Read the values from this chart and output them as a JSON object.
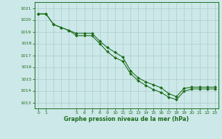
{
  "line_color": "#1a6b1a",
  "bg_color": "#cce8e8",
  "grid_color": "#aacccc",
  "xlabel": "Graphe pression niveau de la mer (hPa)",
  "xtick_positions": [
    0,
    1,
    5,
    6,
    7,
    8,
    9,
    10,
    11,
    12,
    13,
    14,
    15,
    16,
    17,
    18,
    19,
    20,
    21,
    22,
    23
  ],
  "xtick_labels": [
    "0",
    "1",
    "5",
    "6",
    "7",
    "8",
    "9",
    "10",
    "11",
    "12",
    "13",
    "14",
    "15",
    "16",
    "17",
    "18",
    "19",
    "20",
    "21",
    "22",
    "23"
  ],
  "yticks": [
    1013,
    1014,
    1015,
    1016,
    1017,
    1018,
    1019,
    1020,
    1021
  ],
  "ylim": [
    1012.5,
    1021.5
  ],
  "xlim": [
    -0.5,
    23.5
  ],
  "x_data": [
    0,
    1,
    2,
    3,
    4,
    5,
    6,
    7,
    8,
    9,
    10,
    11,
    12,
    13,
    14,
    15,
    16,
    17,
    18,
    19,
    20,
    21,
    22,
    23
  ],
  "y_upper": [
    1020.5,
    1020.5,
    1019.6,
    1019.35,
    1019.1,
    1018.85,
    1018.85,
    1018.85,
    1018.2,
    1017.65,
    1017.25,
    1016.85,
    1015.7,
    1015.1,
    1014.75,
    1014.5,
    1014.25,
    1013.75,
    1013.5,
    1014.2,
    1014.3,
    1014.3,
    1014.3,
    1014.3
  ],
  "y_lower": [
    1020.5,
    1020.5,
    1019.6,
    1019.35,
    1019.1,
    1018.65,
    1018.65,
    1018.65,
    1018.0,
    1017.3,
    1016.8,
    1016.5,
    1015.45,
    1014.85,
    1014.45,
    1014.1,
    1013.85,
    1013.45,
    1013.25,
    1013.95,
    1014.15,
    1014.15,
    1014.15,
    1014.15
  ]
}
